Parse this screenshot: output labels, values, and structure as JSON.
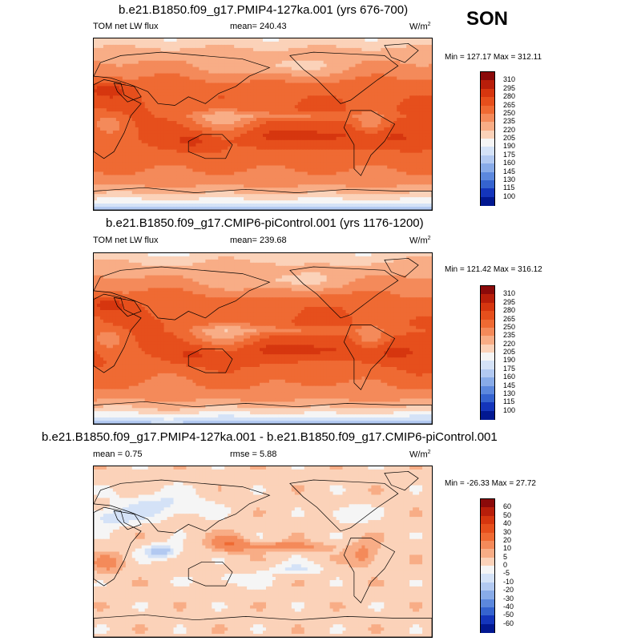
{
  "season": "SON",
  "panels": [
    {
      "title": "b.e21.B1850.f09_g17.PMIP4-127ka.001 (yrs 676-700)",
      "left_label": "TOM net LW flux",
      "center_label": "mean= 240.43",
      "units": "W/m",
      "units_sup": "2",
      "minmax": "Min = 127.17 Max = 312.11"
    },
    {
      "title": "b.e21.B1850.f09_g17.CMIP6-piControl.001 (yrs 1176-1200)",
      "left_label": "TOM net LW flux",
      "center_label": "mean= 239.68",
      "units": "W/m",
      "units_sup": "2",
      "minmax": "Min = 121.42 Max = 316.12"
    },
    {
      "title": "b.e21.B1850.f09_g17.PMIP4-127ka.001 - b.e21.B1850.f09_g17.CMIP6-piControl.001",
      "left_label": "mean =   0.75",
      "center_label": "rmse =   5.88",
      "units": "W/m",
      "units_sup": "2",
      "minmax": "Min = -26.33 Max =  27.72"
    }
  ],
  "chart_data": [
    {
      "type": "heatmap",
      "title": "b.e21.B1850.f09_g17.PMIP4-127ka.001 (yrs 676-700)",
      "variable": "TOM net LW flux",
      "mean": 240.43,
      "min": 127.17,
      "max": 312.11,
      "units": "W/m2",
      "colorbar_levels": [
        "310",
        "295",
        "280",
        "265",
        "250",
        "235",
        "220",
        "205",
        "190",
        "175",
        "160",
        "145",
        "130",
        "115",
        "100"
      ],
      "colorbar_colors": [
        "#8b0a0a",
        "#b81e0a",
        "#d6360f",
        "#e64f1c",
        "#ef6a33",
        "#f48a5a",
        "#f8ad86",
        "#fbd2b9",
        "#f5f5f5",
        "#d4e2f7",
        "#b2c9f1",
        "#88abe8",
        "#5c88dd",
        "#3563cf",
        "#1435bb",
        "#021891"
      ]
    },
    {
      "type": "heatmap",
      "title": "b.e21.B1850.f09_g17.CMIP6-piControl.001 (yrs 1176-1200)",
      "variable": "TOM net LW flux",
      "mean": 239.68,
      "min": 121.42,
      "max": 316.12,
      "units": "W/m2",
      "colorbar_levels": [
        "310",
        "295",
        "280",
        "265",
        "250",
        "235",
        "220",
        "205",
        "190",
        "175",
        "160",
        "145",
        "130",
        "115",
        "100"
      ],
      "colorbar_colors": [
        "#8b0a0a",
        "#b81e0a",
        "#d6360f",
        "#e64f1c",
        "#ef6a33",
        "#f48a5a",
        "#f8ad86",
        "#fbd2b9",
        "#f5f5f5",
        "#d4e2f7",
        "#b2c9f1",
        "#88abe8",
        "#5c88dd",
        "#3563cf",
        "#1435bb",
        "#021891"
      ]
    },
    {
      "type": "heatmap",
      "title": "b.e21.B1850.f09_g17.PMIP4-127ka.001 - b.e21.B1850.f09_g17.CMIP6-piControl.001",
      "mean": 0.75,
      "rmse": 5.88,
      "min": -26.33,
      "max": 27.72,
      "units": "W/m2",
      "colorbar_levels": [
        "60",
        "50",
        "40",
        "30",
        "20",
        "10",
        "5",
        "0",
        "-5",
        "-10",
        "-20",
        "-30",
        "-40",
        "-50",
        "-60"
      ],
      "colorbar_colors": [
        "#8b0a0a",
        "#b81e0a",
        "#d6360f",
        "#e64f1c",
        "#ef6a33",
        "#f48a5a",
        "#f8ad86",
        "#fbd2b9",
        "#f5f5f5",
        "#d4e2f7",
        "#b2c9f1",
        "#88abe8",
        "#5c88dd",
        "#3563cf",
        "#1435bb",
        "#021891"
      ]
    }
  ]
}
